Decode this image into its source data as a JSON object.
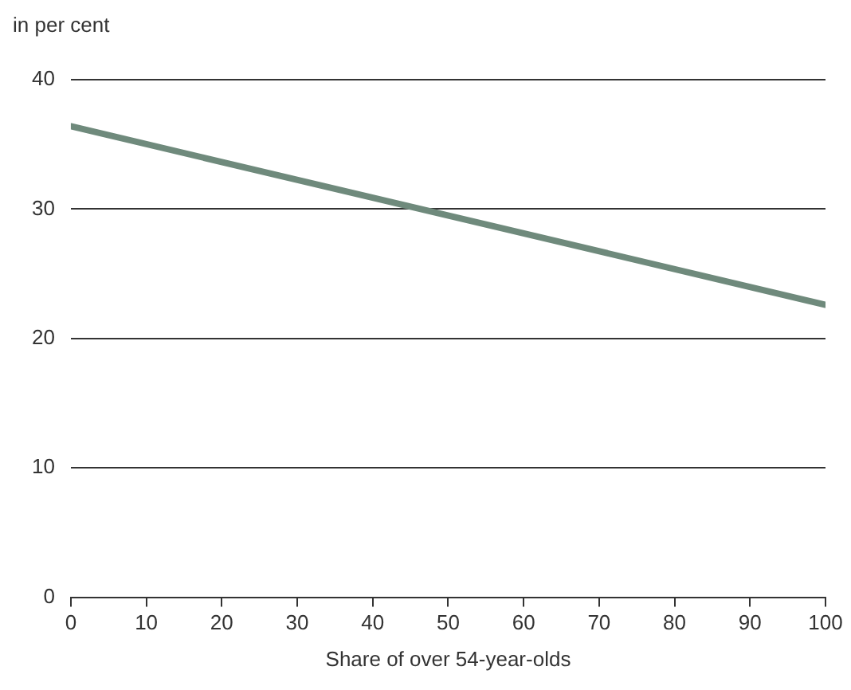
{
  "chart_data": {
    "type": "line",
    "xlabel": "Share of over 54-year-olds",
    "ylabel": "in per cent",
    "x": [
      0,
      100
    ],
    "series": [
      {
        "color": "#6f8a7c",
        "values": [
          36.4,
          22.6
        ]
      }
    ],
    "xlim": [
      0,
      100
    ],
    "xticks": [
      0,
      10,
      20,
      30,
      40,
      50,
      60,
      70,
      80,
      90,
      100
    ],
    "ylim": [
      0,
      40
    ],
    "yticks": [
      0,
      10,
      20,
      30,
      40
    ],
    "grid": "y",
    "legend": false,
    "marker": "none",
    "line_style": "solid"
  }
}
